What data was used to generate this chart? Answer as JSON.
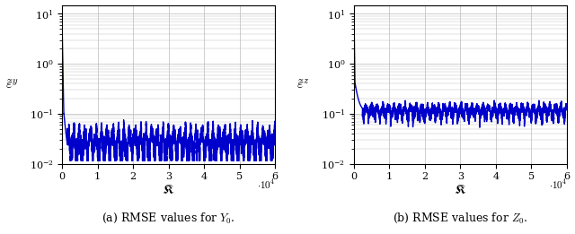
{
  "line_color": "#0000CC",
  "line_width": 1.0,
  "xlim": [
    0,
    60000
  ],
  "ylim": [
    0.01,
    15.0
  ],
  "xticks": [
    0,
    10000,
    20000,
    30000,
    40000,
    50000,
    60000
  ],
  "xtick_labels": [
    "0",
    "1",
    "2",
    "3",
    "4",
    "5",
    "6"
  ],
  "xlabel": "$\\mathfrak{K}$",
  "scale_label": "$\\cdot 10^4$",
  "ylabel_y": "$\\tilde{\\varepsilon}^y$",
  "ylabel_z": "$\\tilde{\\varepsilon}^z$",
  "caption_y": "(a) RMSE values for $Y_0$.",
  "caption_z": "(b) RMSE values for $Z_0$.",
  "n_points": 6000,
  "background_color": "#ffffff",
  "grid_color": "#bbbbbb"
}
